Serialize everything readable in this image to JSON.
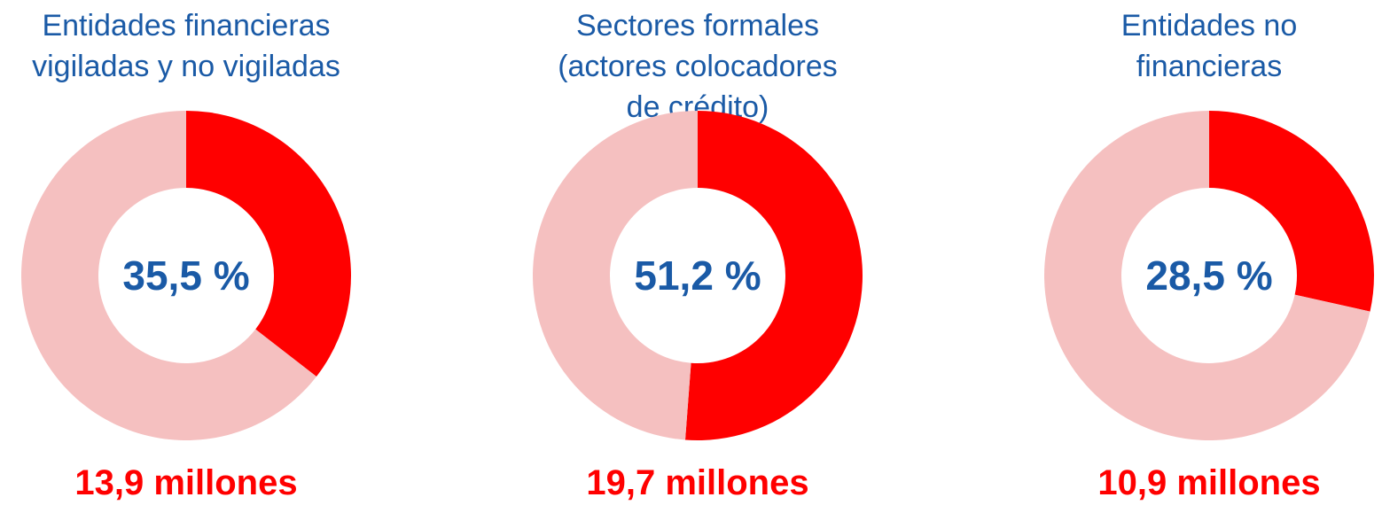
{
  "colors": {
    "accent": "#ff0000",
    "remainder": "#f5c0c0",
    "title_text": "#1a5aa6",
    "center_text": "#1a5aa6",
    "total_text": "#ff0000"
  },
  "chart_data": [
    {
      "type": "pie",
      "title": "Entidades financieras vigiladas y no vigiladas",
      "slices": [
        {
          "value": 35.5,
          "color": "#ff0000"
        },
        {
          "value": 64.5,
          "color": "#f5c0c0"
        }
      ],
      "center_label": "35,5 %",
      "total_label": "13,9 millones"
    },
    {
      "type": "pie",
      "title": "Sectores formales (actores colocadores de crédito)",
      "slices": [
        {
          "value": 51.2,
          "color": "#ff0000"
        },
        {
          "value": 48.8,
          "color": "#f5c0c0"
        }
      ],
      "center_label": "51,2 %",
      "total_label": "19,7 millones"
    },
    {
      "type": "pie",
      "title": "Entidades no financieras",
      "slices": [
        {
          "value": 28.5,
          "color": "#ff0000"
        },
        {
          "value": 71.5,
          "color": "#f5c0c0"
        }
      ],
      "center_label": "28,5 %",
      "total_label": "10,9 millones"
    }
  ]
}
